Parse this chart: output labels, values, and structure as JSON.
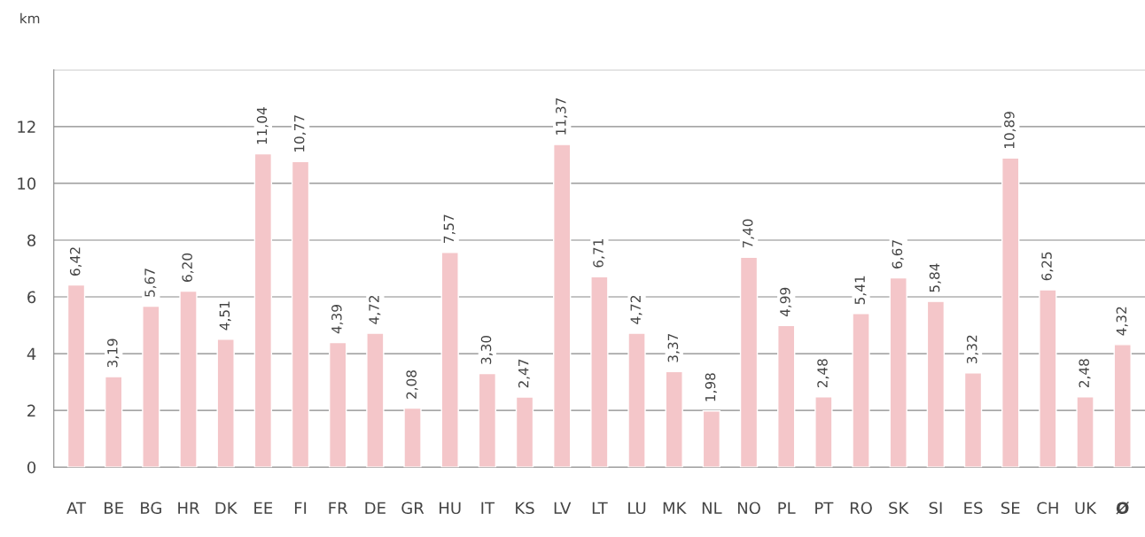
{
  "chart_data": {
    "type": "bar",
    "ylabel": "km",
    "categories": [
      "AT",
      "BE",
      "BG",
      "HR",
      "DK",
      "EE",
      "FI",
      "FR",
      "DE",
      "GR",
      "HU",
      "IT",
      "KS",
      "LV",
      "LT",
      "LU",
      "MK",
      "NL",
      "NO",
      "PL",
      "PT",
      "RO",
      "SK",
      "SI",
      "ES",
      "SE",
      "CH",
      "UK",
      "Ø"
    ],
    "values": [
      6.42,
      3.19,
      5.67,
      6.2,
      4.51,
      11.04,
      10.77,
      4.39,
      4.72,
      2.08,
      7.57,
      3.3,
      2.47,
      11.37,
      6.71,
      4.72,
      3.37,
      1.98,
      7.4,
      4.99,
      2.48,
      5.41,
      6.67,
      5.84,
      3.32,
      10.89,
      6.25,
      2.48,
      4.32
    ],
    "value_labels": [
      "6,42",
      "3,19",
      "5,67",
      "6,20",
      "4,51",
      "11,04",
      "10,77",
      "4,39",
      "4,72",
      "2,08",
      "7,57",
      "3,30",
      "2,47",
      "11,37",
      "6,71",
      "4,72",
      "3,37",
      "1,98",
      "7,40",
      "4,99",
      "2,48",
      "5,41",
      "6,67",
      "5,84",
      "3,32",
      "10,89",
      "6,25",
      "2,48",
      "4,32"
    ],
    "color": "#f4c6c9",
    "ylim": [
      0,
      14
    ],
    "yticks": [
      0,
      2,
      4,
      6,
      8,
      10,
      12,
      {
        "value": 14,
        "label": null
      }
    ],
    "grid": "y",
    "legend": false
  }
}
